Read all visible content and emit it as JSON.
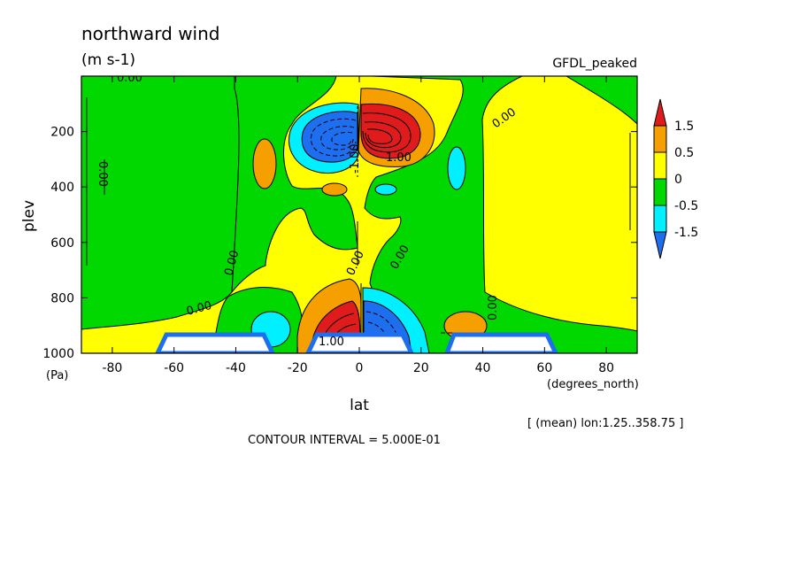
{
  "chart_data": {
    "type": "heatmap",
    "title": "northward wind",
    "units": "(m s-1)",
    "model_label": "GFDL_peaked",
    "xlabel": "lat",
    "x_unit": "(degrees_north)",
    "ylabel": "plev",
    "y_unit": "(Pa)",
    "xlim": [
      -90,
      90
    ],
    "ylim": [
      1000,
      0
    ],
    "y_reversed": true,
    "x_ticks": [
      -80,
      -60,
      -40,
      -20,
      0,
      20,
      40,
      60,
      80
    ],
    "y_ticks": [
      200,
      400,
      600,
      800,
      1000
    ],
    "mean_note": "[ (mean) lon:1.25..358.75 ]",
    "contour_interval_text": "CONTOUR INTERVAL = 5.000E-01",
    "contour_labels": [
      "0.00",
      "1.00",
      "-1.00"
    ],
    "colorbar": {
      "labels": [
        "1.5",
        "0.5",
        "0",
        "-0.5",
        "-1.5"
      ],
      "colors": [
        "#e01b1b",
        "#f5a000",
        "#ffff00",
        "#00d800",
        "#00f0ff",
        "#1e6ef0"
      ]
    },
    "features": [
      {
        "type": "max",
        "lat": 6,
        "plev": 210,
        "value": 2.5
      },
      {
        "type": "min",
        "lat": -7,
        "plev": 210,
        "value": -2.5
      },
      {
        "type": "max",
        "lat": -8,
        "plev": 880,
        "value": 2.0
      },
      {
        "type": "min",
        "lat": 8,
        "plev": 880,
        "value": -2.0
      },
      {
        "type": "max",
        "lat": 34,
        "plev": 900,
        "value": 0.6
      },
      {
        "type": "min",
        "lat": -28,
        "plev": 900,
        "value": -0.6
      }
    ]
  }
}
